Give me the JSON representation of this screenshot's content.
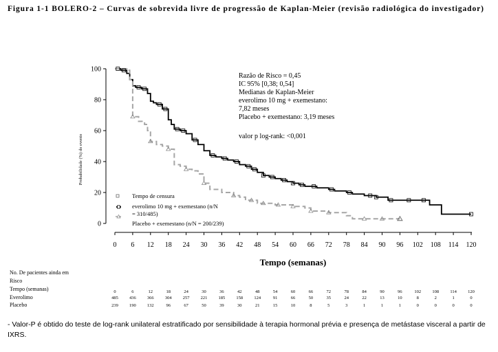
{
  "figure": {
    "title": "Figura 1-1 BOLERO-2 – Curvas de sobrevida livre de progressão de Kaplan-Meier (revisão radiológica do investigador)",
    "footnote": "- Valor-P é obtido do teste de log-rank unilateral estratificado por sensibilidade à terapia hormonal prévia e presença de metástase visceral a partir de IXRS."
  },
  "chart_data": {
    "type": "line",
    "step": true,
    "xlabel": "Tempo (semanas)",
    "ylabel": "Probabilidade (%) do evento",
    "xlim": [
      0,
      120
    ],
    "ylim": [
      0,
      100
    ],
    "x_ticks": [
      "0",
      "6",
      "12",
      "18",
      "24",
      "30",
      "36",
      "42",
      "48",
      "54",
      "60",
      "66",
      "72",
      "78",
      "84",
      "90",
      "96",
      "102",
      "108",
      "114",
      "120"
    ],
    "y_ticks": [
      "0",
      "20",
      "40",
      "60",
      "80",
      "100"
    ],
    "grid": false,
    "stats_text": [
      "Razão de Risco = 0,45",
      "IC 95% [0,38; 0,54]",
      "Medianas de Kaplan-Meier",
      "everolimo 10 mg + exemestano:",
      "7,82 meses",
      "Placebo + exemestano: 3,19 meses",
      "valor p log-rank: <0,001"
    ],
    "legend": {
      "position": "bottom-left",
      "censor_label": "Tempo de censura",
      "entries": [
        {
          "label_line1": "everolimo 10 mg + exemestano (n/N",
          "label_line2": "= 310/485)"
        },
        {
          "label_line1": "Placebo + exemestano (n/N = 200/239)"
        }
      ]
    },
    "series": [
      {
        "name": "everolimo 10 mg + exemestano",
        "color": "#000000",
        "style": "solid",
        "x": [
          0,
          2,
          4,
          5,
          6,
          7,
          9,
          11,
          12,
          13,
          14,
          16,
          18,
          19,
          20,
          22,
          24,
          26,
          28,
          30,
          32,
          34,
          36,
          38,
          40,
          42,
          44,
          46,
          48,
          50,
          52,
          54,
          56,
          58,
          60,
          62,
          64,
          66,
          68,
          70,
          72,
          74,
          76,
          78,
          80,
          82,
          84,
          86,
          88,
          90,
          92,
          96,
          102,
          106,
          108,
          110,
          120
        ],
        "y": [
          100,
          99,
          97,
          93,
          89,
          88,
          87,
          84,
          79,
          78,
          77,
          74,
          67,
          64,
          61,
          60,
          58,
          54,
          51,
          47,
          44,
          43,
          42,
          41,
          40,
          38,
          37,
          35,
          33,
          31,
          30,
          29,
          28,
          27,
          26,
          25,
          24,
          24,
          23,
          23,
          22,
          21,
          21,
          20,
          19,
          19,
          18,
          18,
          17,
          17,
          15,
          15,
          15,
          12,
          12,
          6,
          6
        ]
      },
      {
        "name": "Placebo + exemestano",
        "color": "#a6a6a6",
        "style": "dashed",
        "x": [
          0,
          4,
          5,
          6,
          8,
          10,
          11,
          12,
          14,
          16,
          18,
          20,
          22,
          24,
          26,
          28,
          30,
          32,
          36,
          40,
          42,
          44,
          48,
          54,
          60,
          64,
          66,
          70,
          72,
          74,
          78,
          80,
          84,
          90,
          96
        ],
        "y": [
          100,
          99,
          93,
          69,
          66,
          64,
          60,
          53,
          51,
          50,
          48,
          38,
          37,
          35,
          34,
          32,
          26,
          22,
          20,
          18,
          17,
          15,
          13,
          12,
          11,
          10,
          8,
          8,
          7,
          7,
          5,
          3,
          3,
          3,
          3
        ]
      }
    ],
    "risk_table": {
      "header": "No. De pacientes ainda em",
      "header2": "Risco",
      "time_label": "Tempo (semanas)",
      "times": [
        "0",
        "6",
        "12",
        "18",
        "24",
        "30",
        "36",
        "42",
        "48",
        "54",
        "60",
        "66",
        "72",
        "78",
        "84",
        "90",
        "96",
        "102",
        "108",
        "114",
        "120"
      ],
      "rows": [
        {
          "label": "Everolimo",
          "values": [
            "485",
            "436",
            "366",
            "304",
            "257",
            "221",
            "185",
            "158",
            "124",
            "91",
            "66",
            "50",
            "35",
            "24",
            "22",
            "13",
            "10",
            "8",
            "2",
            "1",
            "0"
          ]
        },
        {
          "label": "Placebo",
          "values": [
            "239",
            "190",
            "132",
            "96",
            "67",
            "50",
            "39",
            "30",
            "21",
            "15",
            "10",
            "8",
            "5",
            "3",
            "1",
            "1",
            "1",
            "0",
            "0",
            "0",
            "0"
          ]
        }
      ]
    }
  }
}
